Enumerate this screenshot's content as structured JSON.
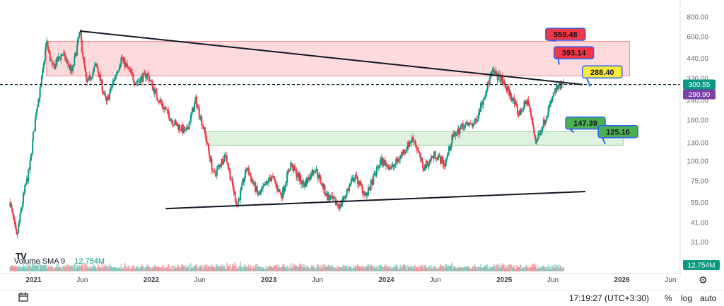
{
  "chart_data": {
    "type": "candlestick",
    "y_scale": "log",
    "ylim": [
      28,
      900
    ],
    "xlim": [
      "2020-10-15",
      "2026-07-01"
    ],
    "y_ticks": [
      {
        "value": 800,
        "label": "800.00"
      },
      {
        "value": 600,
        "label": "600.00"
      },
      {
        "value": 440,
        "label": "440.00"
      },
      {
        "value": 330,
        "label": "330.00"
      },
      {
        "value": 240,
        "label": "240.00"
      },
      {
        "value": 180,
        "label": "180.00"
      },
      {
        "value": 130,
        "label": "130.00"
      },
      {
        "value": 100,
        "label": "100.00"
      },
      {
        "value": 75,
        "label": "75.00"
      },
      {
        "value": 55,
        "label": "55.00"
      },
      {
        "value": 41,
        "label": "41.00"
      },
      {
        "value": 31,
        "label": "31.00"
      }
    ],
    "x_ticks": [
      {
        "date": "2021-01-01",
        "label": "2021",
        "year": true
      },
      {
        "date": "2021-06-01",
        "label": "Jun",
        "year": false
      },
      {
        "date": "2022-01-01",
        "label": "2022",
        "year": true
      },
      {
        "date": "2022-06-01",
        "label": "Jun",
        "year": false
      },
      {
        "date": "2023-01-01",
        "label": "2023",
        "year": true
      },
      {
        "date": "2023-06-01",
        "label": "Jun",
        "year": false
      },
      {
        "date": "2024-01-01",
        "label": "2024",
        "year": true
      },
      {
        "date": "2024-06-01",
        "label": "Jun",
        "year": false
      },
      {
        "date": "2025-01-01",
        "label": "2025",
        "year": true
      },
      {
        "date": "2025-06-01",
        "label": "Jun",
        "year": false
      },
      {
        "date": "2026-01-01",
        "label": "2026",
        "year": true
      },
      {
        "date": "2026-06-01",
        "label": "Jun",
        "year": false
      }
    ],
    "price_path": [
      [
        "2020-10-20",
        55
      ],
      [
        "2020-11-10",
        33
      ],
      [
        "2020-12-01",
        60
      ],
      [
        "2020-12-20",
        90
      ],
      [
        "2021-01-10",
        210
      ],
      [
        "2021-01-25",
        300
      ],
      [
        "2021-02-10",
        560
      ],
      [
        "2021-03-01",
        380
      ],
      [
        "2021-04-01",
        470
      ],
      [
        "2021-05-01",
        360
      ],
      [
        "2021-05-25",
        640
      ],
      [
        "2021-06-15",
        300
      ],
      [
        "2021-07-15",
        400
      ],
      [
        "2021-08-15",
        230
      ],
      [
        "2021-10-01",
        440
      ],
      [
        "2021-11-15",
        310
      ],
      [
        "2021-12-20",
        350
      ],
      [
        "2022-01-20",
        250
      ],
      [
        "2022-03-10",
        175
      ],
      [
        "2022-04-20",
        150
      ],
      [
        "2022-05-20",
        240
      ],
      [
        "2022-06-15",
        155
      ],
      [
        "2022-07-15",
        80
      ],
      [
        "2022-08-20",
        110
      ],
      [
        "2022-09-25",
        52
      ],
      [
        "2022-10-25",
        90
      ],
      [
        "2022-12-01",
        60
      ],
      [
        "2023-01-10",
        80
      ],
      [
        "2023-02-10",
        60
      ],
      [
        "2023-03-10",
        95
      ],
      [
        "2023-04-20",
        70
      ],
      [
        "2023-05-25",
        90
      ],
      [
        "2023-07-01",
        60
      ],
      [
        "2023-08-10",
        52
      ],
      [
        "2023-09-25",
        80
      ],
      [
        "2023-11-01",
        60
      ],
      [
        "2023-12-15",
        100
      ],
      [
        "2024-01-20",
        90
      ],
      [
        "2024-02-25",
        115
      ],
      [
        "2024-03-25",
        140
      ],
      [
        "2024-04-25",
        90
      ],
      [
        "2024-06-01",
        110
      ],
      [
        "2024-07-01",
        95
      ],
      [
        "2024-07-25",
        140
      ],
      [
        "2024-08-25",
        165
      ],
      [
        "2024-10-01",
        170
      ],
      [
        "2024-11-01",
        260
      ],
      [
        "2024-11-25",
        360
      ],
      [
        "2024-12-20",
        330
      ],
      [
        "2025-01-25",
        250
      ],
      [
        "2025-02-15",
        195
      ],
      [
        "2025-03-15",
        240
      ],
      [
        "2025-04-10",
        130
      ],
      [
        "2025-05-15",
        200
      ],
      [
        "2025-06-10",
        280
      ],
      [
        "2025-07-05",
        300
      ]
    ],
    "resistance_zone": {
      "low": 340,
      "high": 560,
      "from": "2021-02-10",
      "to": "2026-01-25"
    },
    "support_zone": {
      "low": 125,
      "high": 152,
      "from": "2022-06-20",
      "to": "2026-01-05"
    },
    "trendlines": [
      {
        "from": [
          "2021-05-25",
          650
        ],
        "to": [
          "2025-09-01",
          300
        ]
      },
      {
        "from": [
          "2022-02-15",
          50
        ],
        "to": [
          "2025-09-10",
          64
        ]
      }
    ],
    "last_price": {
      "value": 300.55,
      "label": "300.55",
      "color": "#089981"
    },
    "secondary_price": {
      "value": 290.9,
      "label": "290.90",
      "color": "#7b3fa8"
    },
    "annotations": [
      {
        "label": "559.48",
        "bg": "#f23645",
        "fg": "#131722",
        "box": [
          "2025-07-10",
          620
        ],
        "tip": [
          "2025-06-10",
          565
        ]
      },
      {
        "label": "393.14",
        "bg": "#f23645",
        "fg": "#131722",
        "box": [
          "2025-08-05",
          475
        ],
        "tip": [
          "2025-06-20",
          400
        ]
      },
      {
        "label": "288.40",
        "bg": "#ffeb3b",
        "fg": "#131722",
        "box": [
          "2025-11-01",
          360
        ],
        "tip": [
          "2025-09-25",
          292
        ]
      },
      {
        "label": "147.39",
        "bg": "#4caf50",
        "fg": "#131722",
        "box": [
          "2025-09-10",
          172
        ],
        "tip": [
          "2025-08-05",
          150
        ]
      },
      {
        "label": "125.16",
        "bg": "#4caf50",
        "fg": "#131722",
        "box": [
          "2025-12-20",
          152
        ],
        "tip": [
          "2025-11-10",
          127
        ]
      }
    ],
    "volume": {
      "label": "Volume SMA 9",
      "value": "12.754M"
    }
  },
  "toolbar": {
    "clock": "17:19:27 (UTC+3:30)",
    "percent": "%",
    "log": "log",
    "auto": "auto",
    "logo": "TV"
  },
  "colors": {
    "up": "#089981",
    "down": "#f23645",
    "axis_bg": "#ffffff"
  }
}
